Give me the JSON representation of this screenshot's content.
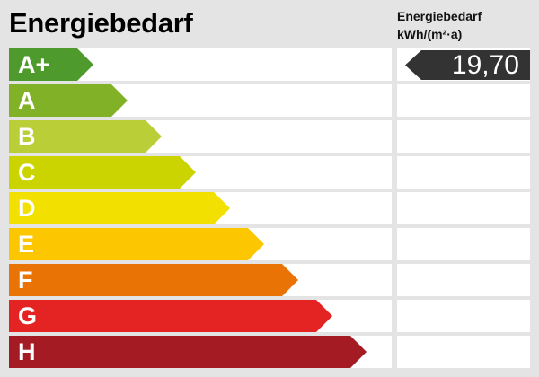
{
  "title": "Energiebedarf",
  "unit_header": {
    "line1": "Energiebedarf",
    "line2": "kWh/(m²·a)"
  },
  "value": "19,70",
  "value_class": "A+",
  "badge_color": "#333333",
  "classes": [
    {
      "label": "A+",
      "color": "#4e9a2c"
    },
    {
      "label": "A",
      "color": "#80b127"
    },
    {
      "label": "B",
      "color": "#b9ce37"
    },
    {
      "label": "C",
      "color": "#cbd400"
    },
    {
      "label": "D",
      "color": "#f2e000"
    },
    {
      "label": "E",
      "color": "#fcc700"
    },
    {
      "label": "F",
      "color": "#ea7306"
    },
    {
      "label": "G",
      "color": "#e42422"
    },
    {
      "label": "H",
      "color": "#a41b24"
    }
  ]
}
